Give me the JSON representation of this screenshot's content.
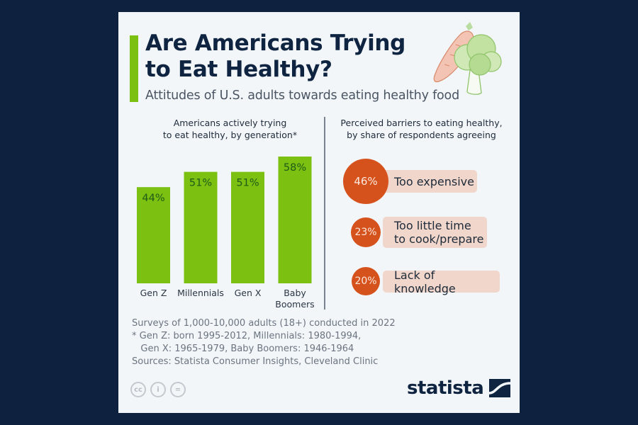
{
  "header": {
    "title_line1": "Are Americans Trying",
    "title_line2": "to Eat Healthy?",
    "subtitle": "Attitudes of U.S. adults towards eating healthy food"
  },
  "colors": {
    "background": "#0e213f",
    "card": "#f3f6f9",
    "bar_green": "#7cc111",
    "bar_label": "#1e5a18",
    "barrier_circle": "#d5521c",
    "barrier_pill": "#f1d7cb",
    "title": "#0e2440"
  },
  "chart_data": [
    {
      "type": "bar",
      "title_line1": "Americans actively trying",
      "title_line2": "to eat healthy, by generation*",
      "categories": [
        "Gen Z",
        "Millennials",
        "Gen X",
        "Baby Boomers"
      ],
      "category_lines": [
        [
          "Gen Z"
        ],
        [
          "Millennials"
        ],
        [
          "Gen X"
        ],
        [
          "Baby",
          "Boomers"
        ]
      ],
      "values": [
        44,
        51,
        51,
        58
      ],
      "data_labels": [
        "44%",
        "51%",
        "51%",
        "58%"
      ],
      "unit": "%",
      "xlabel": "",
      "ylabel": "",
      "ylim": [
        0,
        58
      ],
      "grid": false,
      "legend": "none"
    },
    {
      "type": "table",
      "title_line1": "Perceived barriers to eating healthy,",
      "title_line2": "by share of respondents agreeing",
      "items": [
        {
          "label_lines": [
            "Too expensive"
          ],
          "value": 46,
          "display": "46%"
        },
        {
          "label_lines": [
            "Too little time",
            "to cook/prepare"
          ],
          "value": 23,
          "display": "23%"
        },
        {
          "label_lines": [
            "Lack of knowledge"
          ],
          "value": 20,
          "display": "20%"
        }
      ]
    }
  ],
  "footer": {
    "note1": "Surveys of 1,000-10,000 adults (18+) conducted in 2022",
    "note2": "* Gen Z: born 1995-2012, Millennials: 1980-1994,",
    "note3": "   Gen X: 1965-1979, Baby Boomers: 1946-1964",
    "sources": "Sources: Statista Consumer Insights, Cleveland Clinic",
    "license_icons": [
      "cc-icon",
      "attribution-icon",
      "no-derivatives-icon"
    ],
    "license_glyphs": [
      "cc",
      "i",
      "="
    ],
    "brand": "statista"
  }
}
